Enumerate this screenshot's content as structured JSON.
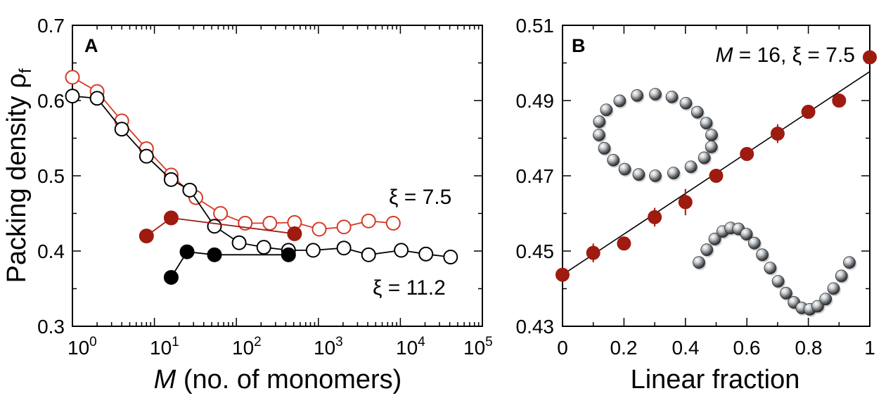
{
  "colors": {
    "red": "#9e1b10",
    "black": "#000000",
    "open_red": "#d63a27"
  },
  "chart_data": [
    {
      "panel": "A",
      "type": "scatter",
      "x_scale": "log",
      "xlim": [
        1,
        100000
      ],
      "ylim": [
        0.3,
        0.7
      ],
      "xlabel_italic": "M",
      "xlabel_rest": " (no. of monomers)",
      "ylabel": "Packing density ρ",
      "ylabel_sub": "f",
      "y_ticks": [
        "0.3",
        "0.4",
        "0.5",
        "0.6",
        "0.7"
      ],
      "x_ticks": [
        {
          "value": 1,
          "base": "10",
          "exp": "0"
        },
        {
          "value": 10,
          "base": "10",
          "exp": "1"
        },
        {
          "value": 100,
          "base": "10",
          "exp": "2"
        },
        {
          "value": 1000,
          "base": "10",
          "exp": "3"
        },
        {
          "value": 10000,
          "base": "10",
          "exp": "4"
        },
        {
          "value": 100000,
          "base": "10",
          "exp": "5"
        }
      ],
      "annotations": [
        "ξ = 7.5",
        "ξ = 11.2"
      ],
      "series": [
        {
          "name": "xi=7.5 open",
          "color": "#d63a27",
          "filled": false,
          "x": [
            1,
            2,
            4,
            8,
            16,
            32,
            64,
            128,
            256,
            512,
            1024,
            2048,
            4096,
            8192
          ],
          "y": [
            0.631,
            0.612,
            0.573,
            0.536,
            0.501,
            0.471,
            0.45,
            0.437,
            0.437,
            0.438,
            0.429,
            0.432,
            0.44,
            0.437
          ]
        },
        {
          "name": "xi=11.2 open",
          "color": "#000000",
          "filled": false,
          "x": [
            1,
            2,
            4,
            8,
            16,
            27,
            54,
            108,
            216,
            432,
            864,
            2048,
            4096,
            10240,
            20480,
            40960
          ],
          "y": [
            0.606,
            0.603,
            0.562,
            0.526,
            0.495,
            0.481,
            0.433,
            0.411,
            0.405,
            0.401,
            0.401,
            0.404,
            0.395,
            0.401,
            0.396,
            0.392
          ]
        },
        {
          "name": "xi=7.5 filled",
          "color": "#9e1b10",
          "filled": true,
          "x": [
            8,
            16,
            512
          ],
          "y": [
            0.42,
            0.444,
            0.423
          ]
        },
        {
          "name": "xi=11.2 filled",
          "color": "#000000",
          "filled": true,
          "x": [
            16,
            25,
            54,
            432
          ],
          "y": [
            0.365,
            0.399,
            0.395,
            0.395
          ]
        }
      ]
    },
    {
      "panel": "B",
      "type": "scatter",
      "xlim": [
        0,
        1
      ],
      "ylim": [
        0.43,
        0.51
      ],
      "xlabel": "Linear fraction",
      "x_ticks": [
        "0",
        "0.2",
        "0.4",
        "0.6",
        "0.8",
        "1"
      ],
      "y_ticks": [
        "0.43",
        "0.45",
        "0.47",
        "0.49",
        "0.51"
      ],
      "annotation_italic": "M",
      "annotation_rest": " = 16,  ξ = 7.5",
      "fit_line": {
        "x": [
          0,
          1
        ],
        "y": [
          0.4437,
          0.4977
        ]
      },
      "series": [
        {
          "name": "data",
          "color": "#9e1b10",
          "filled": true,
          "x": [
            0,
            0.1,
            0.2,
            0.3,
            0.4,
            0.5,
            0.6,
            0.7,
            0.8,
            0.9,
            1.0
          ],
          "y": [
            0.4437,
            0.4495,
            0.452,
            0.459,
            0.463,
            0.47,
            0.4758,
            0.4812,
            0.487,
            0.49,
            0.5015
          ],
          "err": [
            0.0005,
            0.0025,
            0.0012,
            0.0025,
            0.0035,
            0.001,
            0.0012,
            0.0025,
            0.0008,
            0.0008,
            0.0008
          ]
        }
      ]
    }
  ]
}
